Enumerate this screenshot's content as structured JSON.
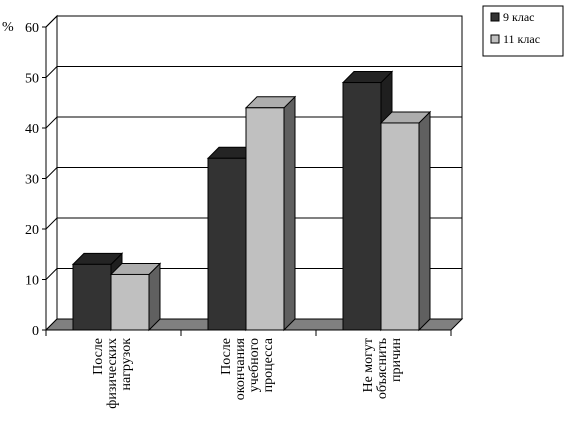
{
  "chart_data": {
    "type": "bar",
    "categories": [
      [
        "После",
        "физических",
        "нагрузок"
      ],
      [
        "После",
        "окончания",
        "учебного",
        "процесса"
      ],
      [
        "Не могут",
        "объяснить",
        "причин"
      ]
    ],
    "series": [
      {
        "name": "9 клас",
        "values": [
          13,
          34,
          49
        ],
        "color": "#333333"
      },
      {
        "name": "11 клас",
        "values": [
          11,
          44,
          41
        ],
        "color": "#c0c0c0"
      }
    ],
    "ylabel": "%",
    "ylim": [
      0,
      60
    ],
    "yticks": [
      0,
      10,
      20,
      30,
      40,
      50,
      60
    ],
    "grid": true,
    "style": "3d-column",
    "legend_position": "top-right"
  }
}
